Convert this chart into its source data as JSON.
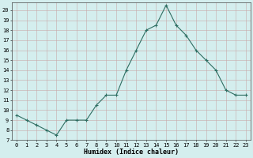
{
  "x": [
    0,
    1,
    2,
    3,
    4,
    5,
    6,
    7,
    8,
    9,
    10,
    11,
    12,
    13,
    14,
    15,
    16,
    17,
    18,
    19,
    20,
    21,
    22,
    23
  ],
  "y": [
    9.5,
    9.0,
    8.5,
    8.0,
    7.5,
    9.0,
    9.0,
    9.0,
    10.5,
    11.5,
    11.5,
    14.0,
    16.0,
    18.0,
    18.5,
    20.5,
    18.5,
    17.5,
    16.0,
    15.0,
    14.0,
    12.0,
    11.5,
    11.5
  ],
  "line_color": "#2e6e62",
  "marker": "+",
  "marker_size": 3,
  "marker_lw": 0.8,
  "line_width": 0.8,
  "bg_color": "#d4eeee",
  "grid_color": "#c8a8a8",
  "xlabel": "Humidex (Indice chaleur)",
  "ylabel_ticks": [
    7,
    8,
    9,
    10,
    11,
    12,
    13,
    14,
    15,
    16,
    17,
    18,
    19,
    20
  ],
  "xlim": [
    -0.5,
    23.5
  ],
  "ylim": [
    7,
    20.8
  ],
  "tick_fontsize": 5.0,
  "xlabel_fontsize": 6.0
}
